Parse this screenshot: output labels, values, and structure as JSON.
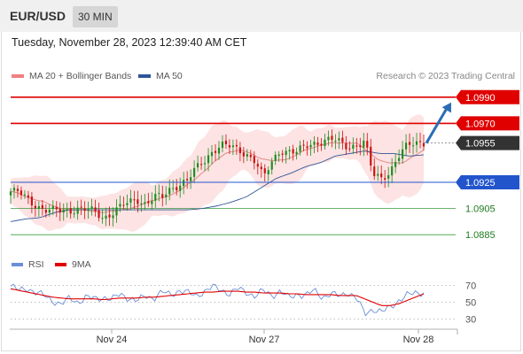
{
  "header": {
    "pair": "EUR/USD",
    "timeframe": "30 MIN"
  },
  "datetime": "Tuesday, November 28, 2023 12:39:40 AM CET",
  "legend": {
    "ma20": {
      "label": "MA 20 + Bollinger Bands",
      "color": "#f08080"
    },
    "ma50": {
      "label": "MA 50",
      "color": "#2f5597"
    }
  },
  "source": "Research © 2023 Trading Central",
  "rsi_legend": {
    "rsi": {
      "label": "RSI",
      "color": "#6a8fd8"
    },
    "ma9": {
      "label": "9MA",
      "color": "#e00000"
    }
  },
  "colors": {
    "up": "#1e8c1e",
    "down": "#cc1010",
    "resistance": "#e00000",
    "support": "#2255cc",
    "target": "#2a6db5",
    "bands": "#fde3e3"
  },
  "chart_data": [
    {
      "type": "line",
      "title": "EUR/USD",
      "timeframe": "30 MIN",
      "ylim": [
        1.0875,
        1.1
      ],
      "x_ticks": [
        "Nov 24",
        "Nov 27",
        "Nov 28"
      ],
      "levels": [
        {
          "label": "1.0990",
          "value": 1.099,
          "kind": "resistance"
        },
        {
          "label": "1.0970",
          "value": 1.097,
          "kind": "resistance"
        },
        {
          "label": "1.0955",
          "value": 1.0955,
          "kind": "last-price"
        },
        {
          "label": "1.0925",
          "value": 1.0925,
          "kind": "pivot"
        },
        {
          "label": "1.0905",
          "value": 1.0905,
          "kind": "support"
        },
        {
          "label": "1.0885",
          "value": 1.0885,
          "kind": "support"
        }
      ],
      "close_path": [
        1.0918,
        1.0917,
        1.0912,
        1.0908,
        1.0904,
        1.0903,
        1.0903,
        1.0904,
        1.0905,
        1.0904,
        1.0902,
        1.0898,
        1.0902,
        1.0906,
        1.0909,
        1.0912,
        1.0909,
        1.0914,
        1.0913,
        1.092,
        1.0924,
        1.0927,
        1.0935,
        1.0941,
        1.095,
        1.0954,
        1.0952,
        1.0949,
        1.0947,
        1.0942,
        1.0928,
        1.094,
        1.095,
        1.0949,
        1.0948,
        1.0952,
        1.0955,
        1.0957,
        1.0958,
        1.0955,
        1.0952,
        1.0954,
        1.0956,
        1.093,
        1.0928,
        1.0934,
        1.0945,
        1.0952,
        1.0955,
        1.0956
      ],
      "ma50_path": [
        1.0895,
        1.0897,
        1.0898,
        1.0902,
        1.0904,
        1.0904,
        1.0904,
        1.0904,
        1.0904,
        1.0904,
        1.0904,
        1.0904,
        1.0904,
        1.0905,
        1.0907,
        1.091,
        1.0914,
        1.0921,
        1.0928,
        1.0932,
        1.0937,
        1.094,
        1.0945,
        1.0947,
        1.0949,
        1.0947,
        1.0947,
        1.0945,
        1.0946
      ],
      "target_arrow": {
        "from": 1.0955,
        "to": 1.099
      }
    },
    {
      "type": "line",
      "title": "RSI",
      "ylim": [
        20,
        80
      ],
      "y_ticks": [
        70,
        50,
        30
      ],
      "series": [
        {
          "name": "RSI",
          "values": [
            69,
            64,
            67,
            61,
            58,
            52,
            47,
            55,
            50,
            56,
            54,
            56,
            53,
            60,
            55,
            51,
            58,
            55,
            62,
            59,
            64,
            61,
            58,
            63,
            68,
            65,
            60,
            66,
            62,
            57,
            64,
            58,
            63,
            55,
            60,
            58,
            64,
            56,
            60,
            57,
            62,
            55,
            36,
            42,
            38,
            44,
            52,
            58,
            61,
            62
          ]
        },
        {
          "name": "9MA",
          "values": [
            66,
            64,
            62,
            60,
            58,
            56,
            55,
            54,
            54,
            54,
            54,
            53,
            54,
            55,
            55,
            55,
            56,
            56,
            57,
            58,
            59,
            60,
            61,
            62,
            62,
            63,
            63,
            63,
            62,
            62,
            61,
            61,
            61,
            60,
            60,
            59,
            59,
            59,
            59,
            58,
            58,
            58,
            54,
            50,
            46,
            46,
            48,
            52,
            56,
            60
          ]
        }
      ]
    }
  ]
}
